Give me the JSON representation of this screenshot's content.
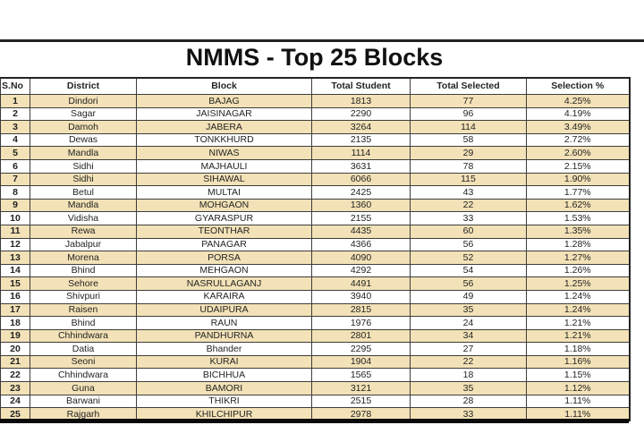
{
  "page": {
    "title": "NMMS - Top 25 Blocks"
  },
  "table": {
    "headers": [
      "S.No",
      "District",
      "Block",
      "Total Student",
      "Total Selected",
      "Selection %"
    ],
    "rows": [
      [
        1,
        "Dindori",
        "BAJAG",
        1813,
        77,
        "4.25%"
      ],
      [
        2,
        "Sagar",
        "JAISINAGAR",
        2290,
        96,
        "4.19%"
      ],
      [
        3,
        "Damoh",
        "JABERA",
        3264,
        114,
        "3.49%"
      ],
      [
        4,
        "Dewas",
        "TONKKHURD",
        2135,
        58,
        "2.72%"
      ],
      [
        5,
        "Mandla",
        "NIWAS",
        1114,
        29,
        "2.60%"
      ],
      [
        6,
        "Sidhi",
        "MAJHAULI",
        3631,
        78,
        "2.15%"
      ],
      [
        7,
        "Sidhi",
        "SIHAWAL",
        6066,
        115,
        "1.90%"
      ],
      [
        8,
        "Betul",
        "MULTAI",
        2425,
        43,
        "1.77%"
      ],
      [
        9,
        "Mandla",
        "MOHGAON",
        1360,
        22,
        "1.62%"
      ],
      [
        10,
        "Vidisha",
        "GYARASPUR",
        2155,
        33,
        "1.53%"
      ],
      [
        11,
        "Rewa",
        "TEONTHAR",
        4435,
        60,
        "1.35%"
      ],
      [
        12,
        "Jabalpur",
        "PANAGAR",
        4366,
        56,
        "1.28%"
      ],
      [
        13,
        "Morena",
        "PORSA",
        4090,
        52,
        "1.27%"
      ],
      [
        14,
        "Bhind",
        "MEHGAON",
        4292,
        54,
        "1.26%"
      ],
      [
        15,
        "Sehore",
        "NASRULLAGANJ",
        4491,
        56,
        "1.25%"
      ],
      [
        16,
        "Shivpuri",
        "KARAIRA",
        3940,
        49,
        "1.24%"
      ],
      [
        17,
        "Raisen",
        "UDAIPURA",
        2815,
        35,
        "1.24%"
      ],
      [
        18,
        "Bhind",
        "RAUN",
        1976,
        24,
        "1.21%"
      ],
      [
        19,
        "Chhindwara",
        "PANDHURNA",
        2801,
        34,
        "1.21%"
      ],
      [
        20,
        "Datia",
        "Bhander",
        2295,
        27,
        "1.18%"
      ],
      [
        21,
        "Seoni",
        "KURAI",
        1904,
        22,
        "1.16%"
      ],
      [
        22,
        "Chhindwara",
        "BICHHUA",
        1565,
        18,
        "1.15%"
      ],
      [
        23,
        "Guna",
        "BAMORI",
        3121,
        35,
        "1.12%"
      ],
      [
        24,
        "Barwani",
        "THIKRI",
        2515,
        28,
        "1.11%"
      ],
      [
        25,
        "Rajgarh",
        "KHILCHIPUR",
        2978,
        33,
        "1.11%"
      ]
    ]
  },
  "colors": {
    "stripe": "#f3e2b7",
    "border": "#3d3d3d",
    "outer": "#232323",
    "bar": "#0a0a0a",
    "text": "#242424",
    "title": "#111111"
  }
}
